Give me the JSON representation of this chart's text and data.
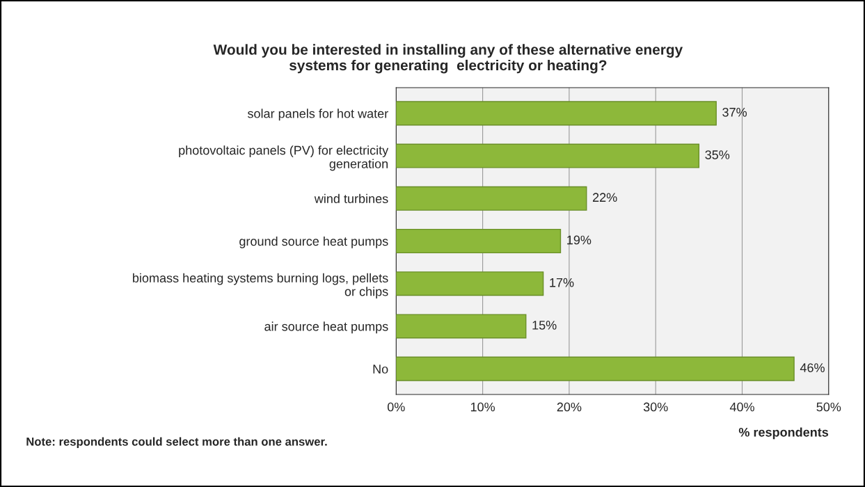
{
  "chart_data": {
    "type": "bar",
    "orientation": "horizontal",
    "title": "Would you be interested in installing any of these alternative energy\nsystems for generating  electricity or heating?",
    "categories": [
      "solar panels for hot water",
      "photovoltaic panels (PV) for electricity\ngeneration",
      "wind turbines",
      "ground source heat pumps",
      "biomass heating systems burning logs, pellets\nor chips",
      "air source heat pumps",
      "No"
    ],
    "values": [
      37,
      35,
      22,
      19,
      17,
      15,
      46
    ],
    "value_labels": [
      "37%",
      "35%",
      "22%",
      "19%",
      "17%",
      "15%",
      "46%"
    ],
    "color": "#8db83a",
    "xlim": [
      0,
      50
    ],
    "xticks": [
      {
        "value": 0,
        "label": "0%"
      },
      {
        "value": 10,
        "label": "10%"
      },
      {
        "value": 20,
        "label": "20%"
      },
      {
        "value": 30,
        "label": "30%"
      },
      {
        "value": 40,
        "label": "40%"
      },
      {
        "value": 50,
        "label": "50%"
      }
    ],
    "xlabel": "% respondents",
    "grid": "x",
    "annotations": [
      "Note: respondents could select more than one answer."
    ]
  }
}
